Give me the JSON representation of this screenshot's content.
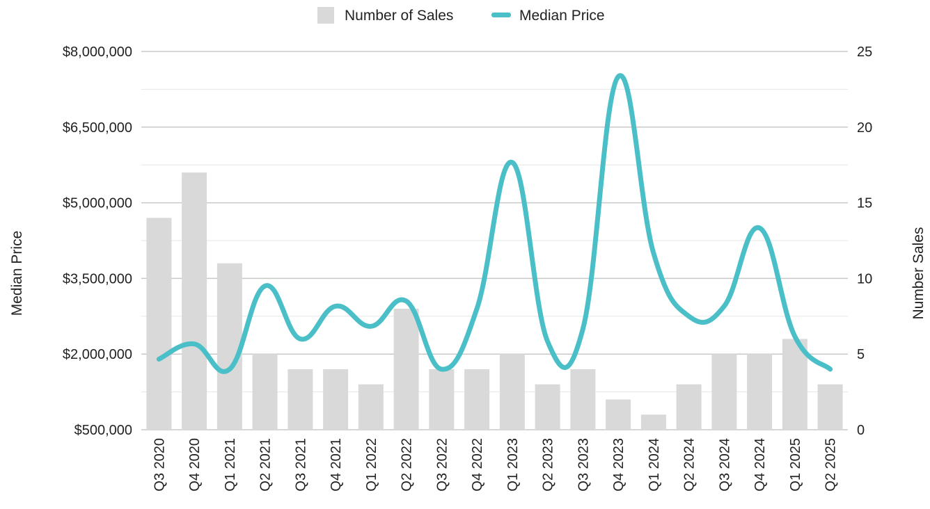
{
  "chart_data": {
    "type": "bar+line",
    "categories": [
      "Q3 2020",
      "Q4 2020",
      "Q1 2021",
      "Q2 2021",
      "Q3 2021",
      "Q4 2021",
      "Q1 2022",
      "Q2 2022",
      "Q3 2022",
      "Q4 2022",
      "Q1 2023",
      "Q2 2023",
      "Q3 2023",
      "Q4 2023",
      "Q1 2024",
      "Q2 2024",
      "Q3 2024",
      "Q4 2024",
      "Q1 2025",
      "Q2 2025"
    ],
    "series": [
      {
        "name": "Number of Sales",
        "type": "bar",
        "axis": "right",
        "color": "#d9d9d9",
        "values": [
          14,
          17,
          11,
          5,
          4,
          4,
          3,
          8,
          4,
          4,
          5,
          3,
          4,
          2,
          1,
          3,
          5,
          5,
          6,
          3
        ]
      },
      {
        "name": "Median Price",
        "type": "line",
        "axis": "left",
        "color": "#4bbfc8",
        "values": [
          1900000,
          2200000,
          1700000,
          3350000,
          2300000,
          2950000,
          2550000,
          3050000,
          1700000,
          2900000,
          5800000,
          2250000,
          2500000,
          7500000,
          4000000,
          2750000,
          2950000,
          4500000,
          2350000,
          1700000
        ]
      }
    ],
    "yleft": {
      "label": "Median Price",
      "min": 500000,
      "max": 8000000,
      "ticks": [
        "$8,000,000",
        "$6,500,000",
        "$5,000,000",
        "$3,500,000",
        "$2,000,000",
        "$500,000"
      ]
    },
    "yright": {
      "label": "Number Sales",
      "min": 0,
      "max": 25,
      "ticks": [
        "25",
        "20",
        "15",
        "10",
        "5",
        "0"
      ]
    },
    "grid": true,
    "legend": "top-center"
  }
}
